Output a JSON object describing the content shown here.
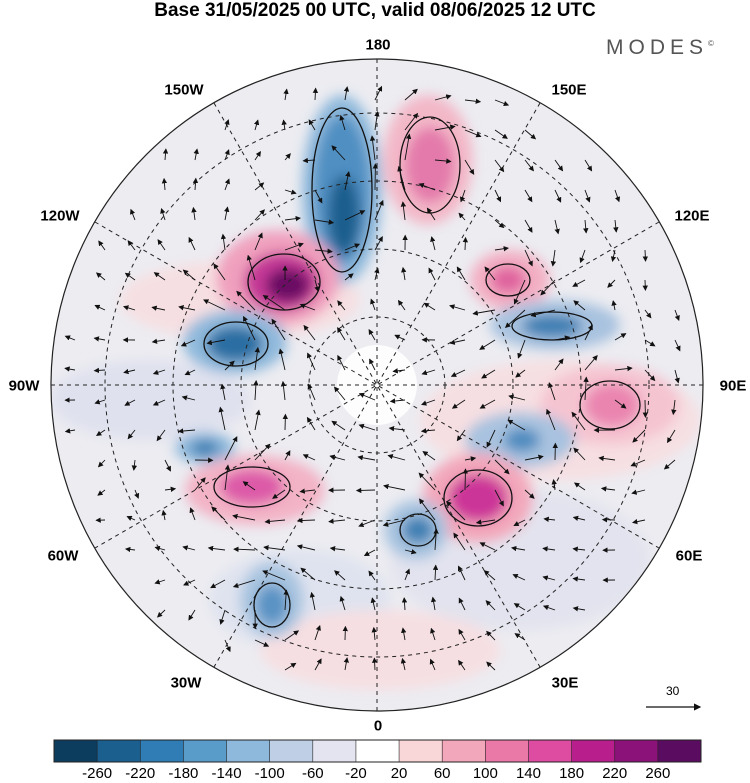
{
  "title": "Base 31/05/2025 00 UTC, valid 08/06/2025 12 UTC",
  "brand": "MODES",
  "brand_mark": "©",
  "longitude_labels": {
    "top": "180",
    "bottom": "0",
    "left": "90W",
    "right": "90E",
    "upper_left_1": "150W",
    "upper_left_2": "120W",
    "upper_right_1": "150E",
    "upper_right_2": "120E",
    "lower_left_1": "60W",
    "lower_left_2": "30W",
    "lower_right_1": "60E",
    "lower_right_2": "30E"
  },
  "reference_vector_label": "30",
  "colorbar": {
    "ticks": [
      "-260",
      "-220",
      "-180",
      "-140",
      "-100",
      "-60",
      "-20",
      "20",
      "60",
      "100",
      "140",
      "180",
      "220",
      "260"
    ],
    "colors": [
      "#0d3d5e",
      "#1a5f8e",
      "#2f7db4",
      "#5a9cc9",
      "#8fb9dc",
      "#bfd0e6",
      "#e4e4f0",
      "#ffffff",
      "#f9d6d8",
      "#f3a7bb",
      "#ea79a8",
      "#dd4ca0",
      "#b81f8c",
      "#8a1278",
      "#5a0d60"
    ]
  },
  "icon_names": [
    "wind-vector-arrow",
    "reference-arrow"
  ]
}
